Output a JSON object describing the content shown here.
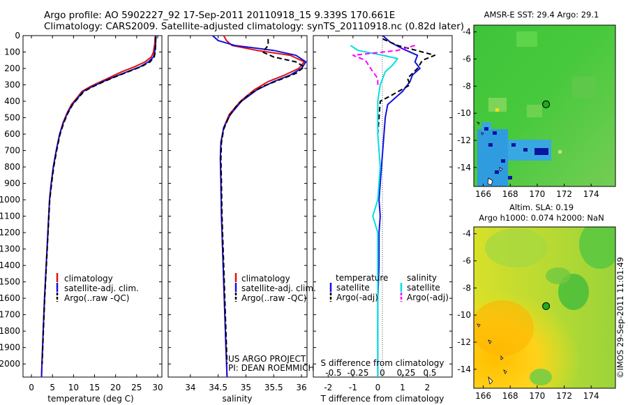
{
  "header": {
    "title_line1": "Argo profile: AO 5902227_92 17-Sep-2011 20110918_15 9.339S 170.661E",
    "title_line2": "Climatology: CARS2009. Satellite-adjusted climatology: synTS_20110918.nc (0.82d later)"
  },
  "credit": "©IMOS 29-Sep-2011 11:01:49",
  "colors": {
    "climatology": "#e01010",
    "satellite": "#1010e0",
    "argo": "#000000",
    "salinity_satellite": "#00e0e0",
    "salinity_argo": "#ff00ff",
    "marker_fill": "#22aa22"
  },
  "chart_data": [
    {
      "type": "line",
      "id": "temperature",
      "xlabel": "temperature (deg C)",
      "ylabel": "",
      "xlim": [
        -2,
        31
      ],
      "ylim": [
        2080,
        0
      ],
      "xticks": [
        0,
        5,
        10,
        15,
        20,
        25,
        30
      ],
      "yticks": [
        0,
        100,
        200,
        300,
        400,
        500,
        600,
        700,
        800,
        900,
        1000,
        1100,
        1200,
        1300,
        1400,
        1500,
        1600,
        1700,
        1800,
        1900,
        2000
      ],
      "legend": [
        "climatology",
        "satellite-adj. clim.",
        "Argo(..raw -QC)"
      ],
      "series": [
        {
          "name": "climatology",
          "color": "#e01010",
          "dash": false,
          "points": [
            [
              29.4,
              0
            ],
            [
              29.3,
              50
            ],
            [
              29.0,
              100
            ],
            [
              28.5,
              130
            ],
            [
              27.0,
              160
            ],
            [
              24.5,
              190
            ],
            [
              21.5,
              220
            ],
            [
              19,
              250
            ],
            [
              16.5,
              280
            ],
            [
              14,
              310
            ],
            [
              12,
              340
            ],
            [
              10.8,
              380
            ],
            [
              9.5,
              420
            ],
            [
              8.5,
              470
            ],
            [
              7.5,
              530
            ],
            [
              6.7,
              600
            ],
            [
              5.9,
              700
            ],
            [
              5.2,
              800
            ],
            [
              4.7,
              900
            ],
            [
              4.3,
              1000
            ],
            [
              3.9,
              1200
            ],
            [
              3.5,
              1400
            ],
            [
              3.1,
              1600
            ],
            [
              2.8,
              1800
            ],
            [
              2.5,
              2000
            ],
            [
              2.4,
              2080
            ]
          ]
        },
        {
          "name": "satellite-adj. clim.",
          "color": "#1010e0",
          "dash": false,
          "points": [
            [
              29.6,
              0
            ],
            [
              29.5,
              50
            ],
            [
              29.3,
              100
            ],
            [
              29,
              130
            ],
            [
              27.8,
              160
            ],
            [
              25.8,
              190
            ],
            [
              22.8,
              220
            ],
            [
              19.8,
              250
            ],
            [
              17,
              280
            ],
            [
              14.5,
              310
            ],
            [
              12.3,
              340
            ],
            [
              11,
              380
            ],
            [
              9.7,
              420
            ],
            [
              8.6,
              470
            ],
            [
              7.6,
              530
            ],
            [
              6.7,
              600
            ],
            [
              5.9,
              700
            ],
            [
              5.2,
              800
            ],
            [
              4.7,
              900
            ],
            [
              4.3,
              1000
            ],
            [
              3.9,
              1200
            ],
            [
              3.5,
              1400
            ],
            [
              3.1,
              1600
            ],
            [
              2.8,
              1800
            ],
            [
              2.5,
              2000
            ],
            [
              2.4,
              2080
            ]
          ]
        },
        {
          "name": "Argo(..raw -QC)",
          "color": "#000000",
          "dash": true,
          "points": [
            [
              29.5,
              10
            ],
            [
              29.5,
              60
            ],
            [
              29.4,
              100
            ],
            [
              29.2,
              130
            ],
            [
              28.2,
              160
            ],
            [
              26,
              190
            ],
            [
              23,
              220
            ],
            [
              20,
              250
            ],
            [
              17.2,
              280
            ],
            [
              14.7,
              310
            ],
            [
              12.5,
              340
            ],
            [
              11.1,
              380
            ],
            [
              9.8,
              420
            ],
            [
              8.7,
              470
            ],
            [
              7.7,
              530
            ],
            [
              6.8,
              600
            ],
            [
              6.0,
              700
            ],
            [
              5.3,
              800
            ],
            [
              4.8,
              900
            ],
            [
              4.35,
              1000
            ],
            [
              3.95,
              1200
            ],
            [
              3.55,
              1400
            ],
            [
              3.15,
              1600
            ],
            [
              2.85,
              1800
            ],
            [
              2.55,
              2000
            ]
          ]
        }
      ]
    },
    {
      "type": "line",
      "id": "salinity",
      "xlabel": "salinity",
      "xlim": [
        33.6,
        36.1
      ],
      "ylim": [
        2080,
        0
      ],
      "xticks": [
        34,
        34.5,
        35,
        35.5,
        36
      ],
      "legend": [
        "climatology",
        "satellite-adj. clim.",
        "Argo(..raw -QC)"
      ],
      "annotation_line1": "US ARGO PROJECT",
      "annotation_line2": "PI: DEAN ROEMMICH",
      "series": [
        {
          "name": "climatology",
          "color": "#e01010",
          "dash": false,
          "points": [
            [
              34.6,
              0
            ],
            [
              34.65,
              30
            ],
            [
              34.75,
              60
            ],
            [
              35.2,
              90
            ],
            [
              35.8,
              120
            ],
            [
              36.05,
              160
            ],
            [
              35.95,
              200
            ],
            [
              35.7,
              240
            ],
            [
              35.4,
              280
            ],
            [
              35.15,
              330
            ],
            [
              34.9,
              400
            ],
            [
              34.7,
              480
            ],
            [
              34.6,
              560
            ],
            [
              34.55,
              650
            ],
            [
              34.54,
              750
            ],
            [
              34.55,
              900
            ],
            [
              34.56,
              1100
            ],
            [
              34.58,
              1300
            ],
            [
              34.6,
              1500
            ],
            [
              34.62,
              1700
            ],
            [
              34.64,
              1900
            ],
            [
              34.66,
              2080
            ]
          ]
        },
        {
          "name": "satellite-adj. clim.",
          "color": "#1010e0",
          "dash": false,
          "points": [
            [
              34.4,
              0
            ],
            [
              34.5,
              30
            ],
            [
              34.8,
              60
            ],
            [
              35.5,
              90
            ],
            [
              35.9,
              120
            ],
            [
              36.08,
              160
            ],
            [
              36.0,
              200
            ],
            [
              35.8,
              240
            ],
            [
              35.5,
              280
            ],
            [
              35.2,
              330
            ],
            [
              34.92,
              400
            ],
            [
              34.72,
              480
            ],
            [
              34.6,
              560
            ],
            [
              34.55,
              650
            ],
            [
              34.54,
              750
            ],
            [
              34.55,
              900
            ],
            [
              34.56,
              1100
            ],
            [
              34.58,
              1300
            ],
            [
              34.6,
              1500
            ],
            [
              34.62,
              1700
            ],
            [
              34.64,
              1900
            ],
            [
              34.66,
              2080
            ]
          ]
        },
        {
          "name": "Argo(..raw -QC)",
          "color": "#000000",
          "dash": true,
          "points": [
            [
              35.4,
              20
            ],
            [
              35.4,
              60
            ],
            [
              35.3,
              100
            ],
            [
              35.5,
              130
            ],
            [
              35.9,
              160
            ],
            [
              36.05,
              190
            ],
            [
              35.9,
              230
            ],
            [
              35.6,
              270
            ],
            [
              35.3,
              310
            ],
            [
              35.05,
              360
            ],
            [
              34.85,
              420
            ],
            [
              34.7,
              490
            ],
            [
              34.6,
              570
            ],
            [
              34.56,
              650
            ],
            [
              34.55,
              750
            ],
            [
              34.56,
              900
            ],
            [
              34.57,
              1100
            ],
            [
              34.59,
              1300
            ],
            [
              34.61,
              1500
            ],
            [
              34.63,
              1700
            ],
            [
              34.65,
              1900
            ],
            [
              34.66,
              2000
            ]
          ]
        }
      ]
    },
    {
      "type": "line",
      "id": "difference",
      "xlabel": "T difference from climatology",
      "xlabel_top": "S difference from climatology",
      "xlim": [
        -2.6,
        3
      ],
      "ylim": [
        2080,
        0
      ],
      "xticks": [
        -2,
        -1,
        0,
        1,
        2
      ],
      "s_xticks": [
        "-0.5",
        "-0.25",
        "0",
        "0.25",
        "0.5"
      ],
      "legend_col1_title": "temperature",
      "legend_col2_title": "salinity",
      "legend": [
        "satellite",
        "Argo(-adj)",
        "satellite",
        "Argo(-adj)"
      ],
      "series": [
        {
          "name": "satellite",
          "group": "temperature",
          "color": "#1010e0",
          "dash": false,
          "points": [
            [
              0.2,
              0
            ],
            [
              0.5,
              40
            ],
            [
              1.0,
              80
            ],
            [
              1.6,
              120
            ],
            [
              1.5,
              160
            ],
            [
              1.7,
              200
            ],
            [
              1.4,
              240
            ],
            [
              1.3,
              280
            ],
            [
              1.0,
              340
            ],
            [
              0.4,
              420
            ],
            [
              0.3,
              500
            ],
            [
              0.25,
              600
            ],
            [
              0.2,
              700
            ],
            [
              0.15,
              800
            ],
            [
              0.1,
              900
            ],
            [
              0.05,
              1000
            ],
            [
              0.1,
              1100
            ],
            [
              0.05,
              1200
            ],
            [
              0.05,
              1400
            ],
            [
              0.0,
              1600
            ],
            [
              0.0,
              1800
            ],
            [
              0.0,
              2080
            ]
          ]
        },
        {
          "name": "Argo(-adj)",
          "group": "temperature",
          "color": "#000000",
          "dash": true,
          "points": [
            [
              0.2,
              20
            ],
            [
              0.8,
              60
            ],
            [
              2.3,
              120
            ],
            [
              1.8,
              150
            ],
            [
              1.6,
              200
            ],
            [
              1.2,
              260
            ],
            [
              1.3,
              300
            ],
            [
              0.6,
              360
            ],
            [
              0.1,
              400
            ],
            [
              0.05,
              500
            ],
            [
              0.0,
              600
            ]
          ]
        },
        {
          "name": "satellite",
          "group": "salinity",
          "color": "#00e0e0",
          "dash": false,
          "points": [
            [
              -1.1,
              60
            ],
            [
              -0.8,
              90
            ],
            [
              0.2,
              120
            ],
            [
              0.8,
              140
            ],
            [
              0.6,
              180
            ],
            [
              0.3,
              220
            ],
            [
              0.1,
              300
            ],
            [
              0.0,
              400
            ],
            [
              0.0,
              600
            ],
            [
              0.1,
              800
            ],
            [
              0.0,
              1000
            ],
            [
              -0.2,
              1100
            ],
            [
              0.0,
              1200
            ],
            [
              0.0,
              1400
            ],
            [
              0.0,
              1600
            ],
            [
              0.0,
              1800
            ],
            [
              0.0,
              2080
            ]
          ]
        },
        {
          "name": "Argo(-adj)",
          "group": "salinity",
          "color": "#ff00ff",
          "dash": true,
          "points": [
            [
              1.5,
              60
            ],
            [
              0.8,
              90
            ],
            [
              -1.0,
              120
            ],
            [
              -0.5,
              150
            ],
            [
              -0.2,
              220
            ],
            [
              0.0,
              260
            ],
            [
              0.0,
              300
            ]
          ]
        }
      ]
    },
    {
      "type": "heatmap",
      "id": "sst-map",
      "title": "AMSR-E SST: 29.4 Argo: 29.1",
      "xlim": [
        165.3,
        175.8
      ],
      "ylim": [
        -15.4,
        -3.5
      ],
      "xticks": [
        166,
        168,
        170,
        172,
        174
      ],
      "yticks": [
        -4,
        -6,
        -8,
        -10,
        -12,
        -14
      ],
      "argo_position": {
        "lon": 170.66,
        "lat": -9.34
      }
    },
    {
      "type": "heatmap",
      "id": "sla-map",
      "title_line1": "Altim. SLA: 0.19",
      "title_line2": "Argo h1000: 0.074 h2000: NaN",
      "xlim": [
        165.3,
        175.8
      ],
      "ylim": [
        -15.4,
        -3.5
      ],
      "xticks": [
        166,
        168,
        170,
        172,
        174
      ],
      "yticks": [
        -4,
        -6,
        -8,
        -10,
        -12,
        -14
      ],
      "argo_position": {
        "lon": 170.66,
        "lat": -9.34
      }
    }
  ]
}
